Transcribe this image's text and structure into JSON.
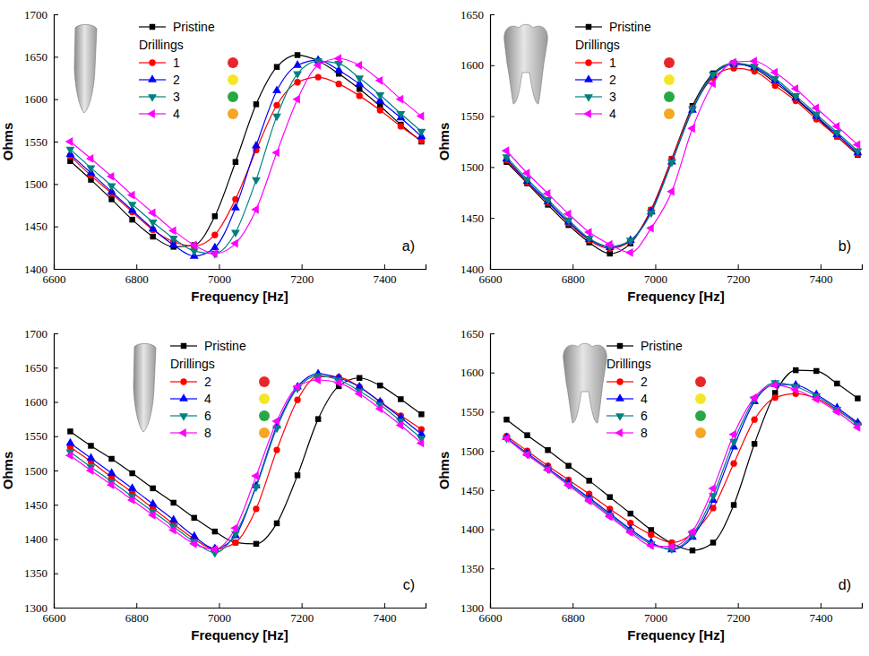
{
  "chart_data": [
    {
      "type": "line",
      "title": "a)",
      "x_label": "Frequency [Hz]",
      "y_label": "Ohms",
      "legend_title": "Drillings",
      "legend": "upper left",
      "xlim": [
        6600,
        7500
      ],
      "xticks": [
        6600,
        6800,
        7000,
        7200,
        7400
      ],
      "ylim": [
        1400,
        1700
      ],
      "yticks": [
        1400,
        1450,
        1500,
        1550,
        1600,
        1650,
        1700
      ],
      "x": [
        6640,
        6690,
        6740,
        6790,
        6840,
        6890,
        6940,
        6990,
        7040,
        7090,
        7140,
        7190,
        7240,
        7290,
        7340,
        7390,
        7440,
        7490
      ],
      "series": [
        {
          "name": "Pristine",
          "color": "#000000",
          "marker": "square",
          "values": [
            1527,
            1505,
            1482,
            1458,
            1438,
            1426,
            1428,
            1462,
            1526,
            1594,
            1638,
            1652,
            1645,
            1630,
            1612,
            1592,
            1570,
            1550
          ]
        },
        {
          "name": "1",
          "color": "#ff0000",
          "marker": "circle",
          "values": [
            1533,
            1510,
            1489,
            1467,
            1446,
            1432,
            1427,
            1440,
            1482,
            1540,
            1593,
            1620,
            1626,
            1618,
            1604,
            1587,
            1568,
            1551
          ]
        },
        {
          "name": "2",
          "color": "#0000ff",
          "marker": "triangle-up",
          "values": [
            1535,
            1513,
            1491,
            1469,
            1447,
            1428,
            1415,
            1425,
            1472,
            1545,
            1610,
            1640,
            1646,
            1634,
            1618,
            1598,
            1578,
            1556
          ]
        },
        {
          "name": "3",
          "color": "#008080",
          "marker": "triangle-down",
          "values": [
            1541,
            1519,
            1498,
            1476,
            1455,
            1436,
            1421,
            1418,
            1443,
            1505,
            1580,
            1630,
            1645,
            1642,
            1625,
            1605,
            1583,
            1562
          ]
        },
        {
          "name": "4",
          "color": "#ff00ff",
          "marker": "triangle-left",
          "values": [
            1550,
            1530,
            1509,
            1487,
            1466,
            1445,
            1428,
            1418,
            1430,
            1470,
            1537,
            1600,
            1640,
            1648,
            1640,
            1622,
            1600,
            1580
          ]
        }
      ]
    },
    {
      "type": "line",
      "title": "b)",
      "x_label": "Frequency [Hz]",
      "y_label": "Ohms",
      "legend_title": "Drillings",
      "legend": "upper left",
      "xlim": [
        6600,
        7500
      ],
      "xticks": [
        6600,
        6800,
        7000,
        7200,
        7400
      ],
      "ylim": [
        1400,
        1650
      ],
      "yticks": [
        1400,
        1450,
        1500,
        1550,
        1600,
        1650
      ],
      "x": [
        6640,
        6690,
        6740,
        6790,
        6840,
        6890,
        6940,
        6990,
        7040,
        7090,
        7140,
        7190,
        7240,
        7290,
        7340,
        7390,
        7440,
        7490
      ],
      "series": [
        {
          "name": "Pristine",
          "color": "#000000",
          "marker": "square",
          "values": [
            1505,
            1484,
            1463,
            1443,
            1426,
            1415,
            1425,
            1458,
            1508,
            1560,
            1592,
            1602,
            1597,
            1583,
            1567,
            1549,
            1530,
            1512
          ]
        },
        {
          "name": "1",
          "color": "#ff0000",
          "marker": "circle",
          "values": [
            1507,
            1485,
            1465,
            1445,
            1428,
            1420,
            1427,
            1458,
            1508,
            1558,
            1588,
            1597,
            1594,
            1580,
            1565,
            1547,
            1530,
            1513
          ]
        },
        {
          "name": "2",
          "color": "#0000ff",
          "marker": "triangle-up",
          "values": [
            1508,
            1486,
            1466,
            1446,
            1429,
            1421,
            1428,
            1456,
            1505,
            1556,
            1590,
            1601,
            1598,
            1585,
            1568,
            1550,
            1532,
            1514
          ]
        },
        {
          "name": "3",
          "color": "#008080",
          "marker": "triangle-down",
          "values": [
            1510,
            1488,
            1468,
            1448,
            1430,
            1422,
            1428,
            1455,
            1505,
            1557,
            1591,
            1602,
            1599,
            1587,
            1570,
            1552,
            1534,
            1516
          ]
        },
        {
          "name": "4",
          "color": "#ff00ff",
          "marker": "triangle-left",
          "values": [
            1516,
            1494,
            1474,
            1454,
            1436,
            1424,
            1416,
            1440,
            1476,
            1538,
            1582,
            1603,
            1604,
            1593,
            1577,
            1558,
            1540,
            1522
          ]
        }
      ]
    },
    {
      "type": "line",
      "title": "c)",
      "x_label": "Frequency [Hz]",
      "y_label": "Ohms",
      "legend_title": "Drillings",
      "legend": "upper center",
      "xlim": [
        6600,
        7500
      ],
      "xticks": [
        6600,
        6800,
        7000,
        7200,
        7400
      ],
      "ylim": [
        1300,
        1700
      ],
      "yticks": [
        1300,
        1350,
        1400,
        1450,
        1500,
        1550,
        1600,
        1650,
        1700
      ],
      "x": [
        6640,
        6690,
        6740,
        6790,
        6840,
        6890,
        6940,
        6990,
        7040,
        7090,
        7140,
        7190,
        7240,
        7290,
        7340,
        7390,
        7440,
        7490
      ],
      "series": [
        {
          "name": "Pristine",
          "color": "#000000",
          "marker": "square",
          "values": [
            1557,
            1536,
            1517,
            1496,
            1474,
            1453,
            1431,
            1411,
            1395,
            1393,
            1423,
            1493,
            1575,
            1623,
            1635,
            1624,
            1604,
            1582
          ]
        },
        {
          "name": "2",
          "color": "#ff0000",
          "marker": "circle",
          "values": [
            1534,
            1513,
            1490,
            1468,
            1445,
            1422,
            1400,
            1385,
            1395,
            1444,
            1530,
            1603,
            1637,
            1636,
            1622,
            1600,
            1580,
            1560
          ]
        },
        {
          "name": "4",
          "color": "#0000ff",
          "marker": "triangle-up",
          "values": [
            1540,
            1518,
            1496,
            1474,
            1451,
            1428,
            1404,
            1386,
            1405,
            1478,
            1565,
            1622,
            1641,
            1635,
            1622,
            1600,
            1577,
            1553
          ]
        },
        {
          "name": "6",
          "color": "#008080",
          "marker": "triangle-down",
          "values": [
            1527,
            1505,
            1484,
            1462,
            1440,
            1418,
            1396,
            1380,
            1408,
            1476,
            1562,
            1620,
            1638,
            1632,
            1616,
            1596,
            1572,
            1547
          ]
        },
        {
          "name": "8",
          "color": "#ff00ff",
          "marker": "triangle-left",
          "values": [
            1522,
            1500,
            1479,
            1457,
            1435,
            1413,
            1393,
            1385,
            1416,
            1492,
            1572,
            1622,
            1632,
            1628,
            1612,
            1590,
            1566,
            1540
          ]
        }
      ]
    },
    {
      "type": "line",
      "title": "d)",
      "x_label": "Frequency [Hz]",
      "y_label": "Ohms",
      "legend_title": "Drillings",
      "legend": "upper center",
      "xlim": [
        6600,
        7500
      ],
      "xticks": [
        6600,
        6800,
        7000,
        7200,
        7400
      ],
      "ylim": [
        1300,
        1650
      ],
      "yticks": [
        1300,
        1350,
        1400,
        1450,
        1500,
        1550,
        1600,
        1650
      ],
      "x": [
        6640,
        6690,
        6740,
        6790,
        6840,
        6890,
        6940,
        6990,
        7040,
        7090,
        7140,
        7190,
        7240,
        7290,
        7340,
        7390,
        7440,
        7490
      ],
      "series": [
        {
          "name": "Pristine",
          "color": "#000000",
          "marker": "square",
          "values": [
            1540,
            1520,
            1501,
            1481,
            1462,
            1441,
            1420,
            1399,
            1382,
            1373,
            1383,
            1431,
            1509,
            1574,
            1603,
            1602,
            1586,
            1567
          ]
        },
        {
          "name": "2",
          "color": "#ff0000",
          "marker": "circle",
          "values": [
            1519,
            1500,
            1481,
            1463,
            1445,
            1426,
            1408,
            1393,
            1383,
            1395,
            1427,
            1484,
            1540,
            1568,
            1573,
            1567,
            1552,
            1535
          ]
        },
        {
          "name": "4",
          "color": "#0000ff",
          "marker": "triangle-up",
          "values": [
            1517,
            1497,
            1478,
            1459,
            1440,
            1420,
            1400,
            1383,
            1374,
            1390,
            1437,
            1505,
            1563,
            1585,
            1584,
            1572,
            1555,
            1536
          ]
        },
        {
          "name": "6",
          "color": "#008080",
          "marker": "triangle-down",
          "values": [
            1516,
            1496,
            1477,
            1457,
            1438,
            1418,
            1398,
            1381,
            1375,
            1393,
            1443,
            1512,
            1566,
            1587,
            1582,
            1570,
            1553,
            1533
          ]
        },
        {
          "name": "8",
          "color": "#ff00ff",
          "marker": "triangle-left",
          "values": [
            1516,
            1495,
            1476,
            1456,
            1436,
            1416,
            1396,
            1379,
            1378,
            1397,
            1452,
            1521,
            1568,
            1584,
            1578,
            1566,
            1550,
            1530
          ]
        }
      ]
    }
  ]
}
